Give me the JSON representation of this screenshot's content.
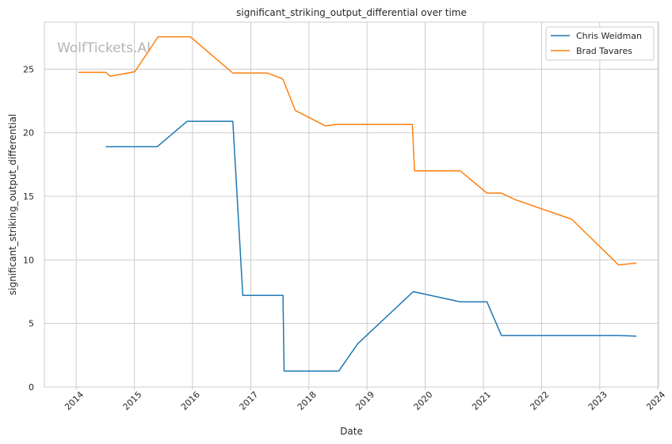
{
  "chart_data": {
    "type": "line",
    "title": "significant_striking_output_differential over time",
    "xlabel": "Date",
    "ylabel": "significant_striking_output_differential",
    "watermark": "WolfTickets.AI",
    "x_ticks": [
      "2014",
      "2015",
      "2016",
      "2017",
      "2018",
      "2019",
      "2020",
      "2021",
      "2022",
      "2023",
      "2024"
    ],
    "y_ticks": [
      0,
      5,
      10,
      15,
      20,
      25
    ],
    "xlim": [
      "2013-06-15",
      "2024-01-05"
    ],
    "ylim": [
      0,
      28.7
    ],
    "grid": true,
    "legend_position": "top-right",
    "series": [
      {
        "name": "Chris Weidman",
        "color": "#1f77b4",
        "points": [
          [
            "2014-07-05",
            18.9
          ],
          [
            "2015-05-24",
            18.9
          ],
          [
            "2015-11-28",
            20.9
          ],
          [
            "2016-09-10",
            20.9
          ],
          [
            "2016-11-12",
            7.2
          ],
          [
            "2017-07-22",
            7.2
          ],
          [
            "2017-07-29",
            1.25
          ],
          [
            "2018-07-07",
            1.25
          ],
          [
            "2018-11-03",
            3.4
          ],
          [
            "2019-10-18",
            7.5
          ],
          [
            "2020-08-08",
            6.7
          ],
          [
            "2021-01-23",
            6.7
          ],
          [
            "2021-04-24",
            4.05
          ],
          [
            "2023-04-29",
            4.05
          ],
          [
            "2023-08-19",
            4.0
          ]
        ]
      },
      {
        "name": "Brad Tavares",
        "color": "#ff7f0e",
        "points": [
          [
            "2014-01-15",
            24.75
          ],
          [
            "2014-07-05",
            24.75
          ],
          [
            "2014-08-03",
            24.45
          ],
          [
            "2015-01-04",
            24.8
          ],
          [
            "2015-05-30",
            27.55
          ],
          [
            "2015-12-19",
            27.55
          ],
          [
            "2016-09-10",
            24.7
          ],
          [
            "2017-04-15",
            24.7
          ],
          [
            "2017-07-07",
            24.3
          ],
          [
            "2017-07-22",
            24.2
          ],
          [
            "2017-10-07",
            21.75
          ],
          [
            "2018-04-14",
            20.55
          ],
          [
            "2018-06-23",
            20.65
          ],
          [
            "2019-10-12",
            20.65
          ],
          [
            "2019-10-26",
            17.0
          ],
          [
            "2020-08-08",
            17.0
          ],
          [
            "2021-01-23",
            15.25
          ],
          [
            "2021-04-24",
            15.25
          ],
          [
            "2021-07-17",
            14.75
          ],
          [
            "2022-07-09",
            13.2
          ],
          [
            "2023-04-29",
            9.6
          ],
          [
            "2023-08-19",
            9.75
          ]
        ]
      }
    ]
  }
}
